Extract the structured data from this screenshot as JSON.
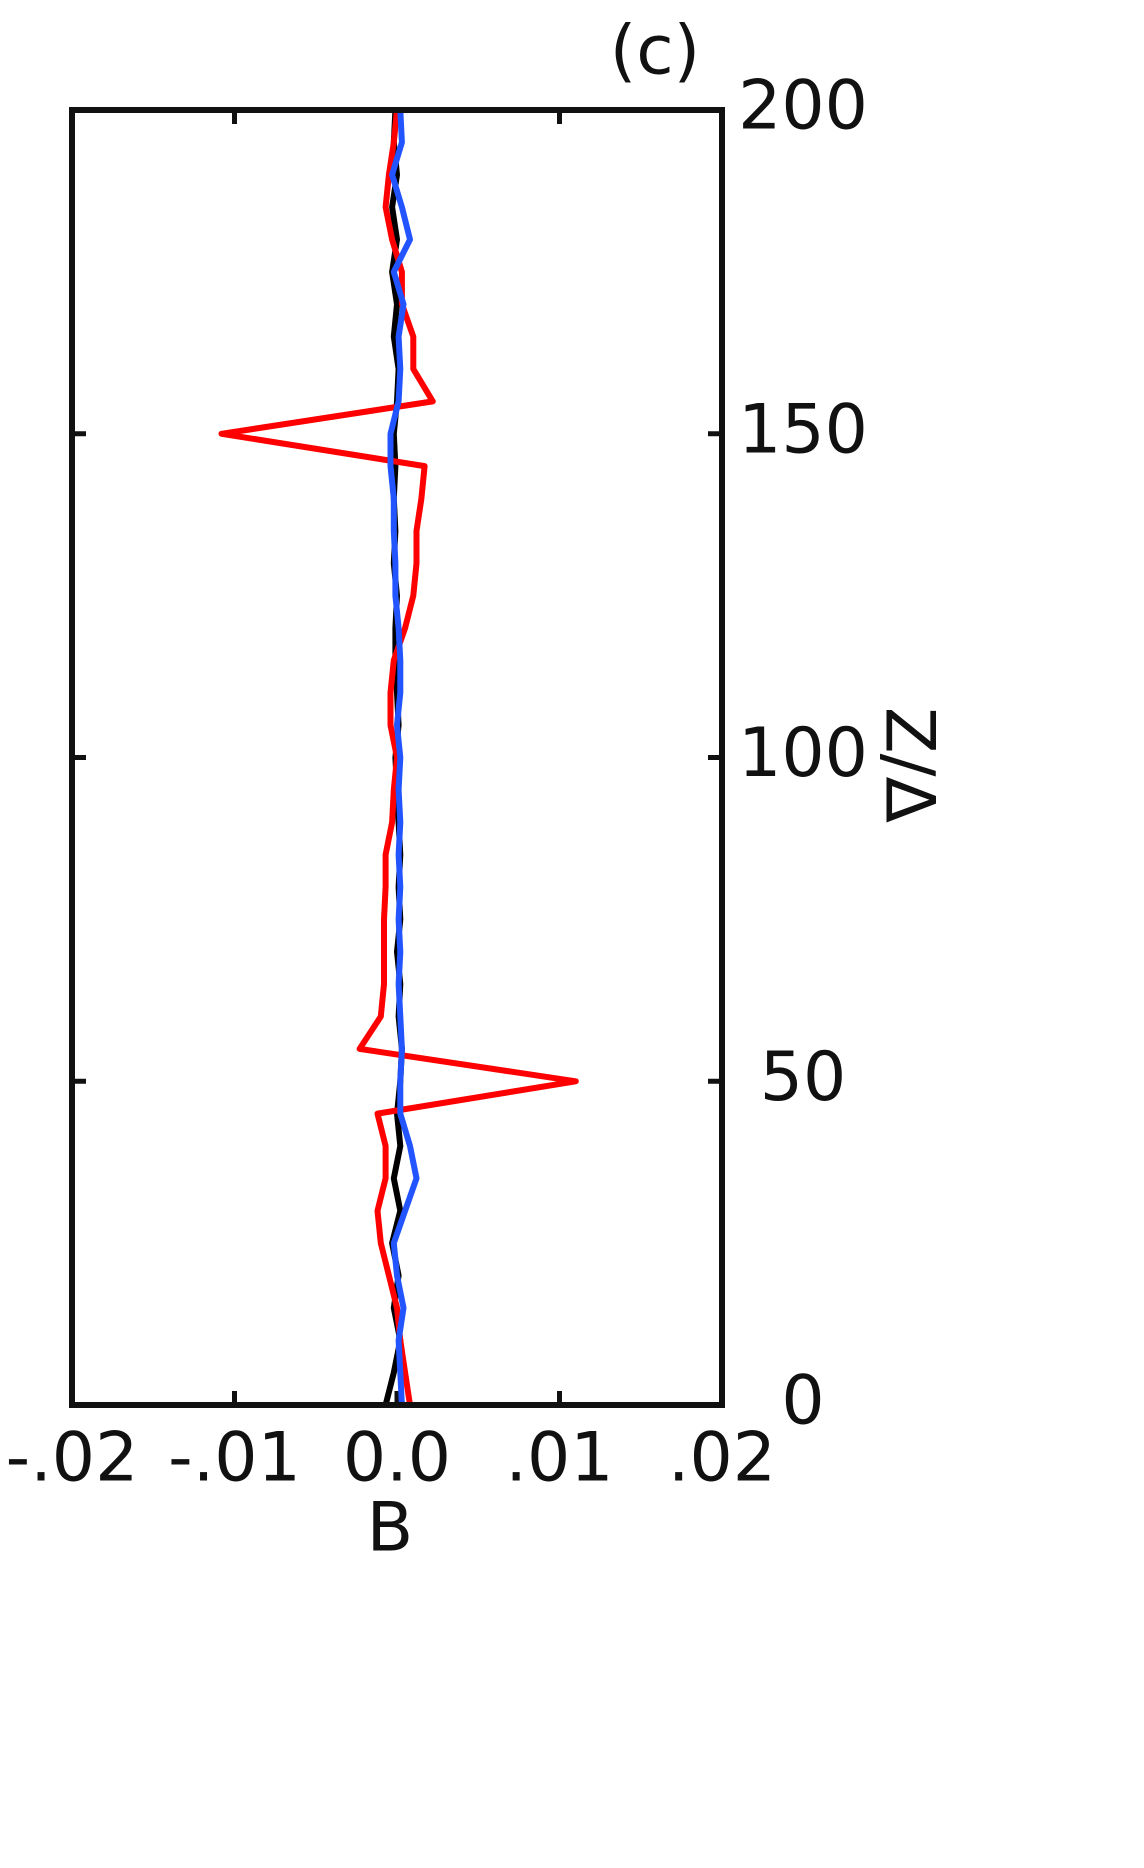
{
  "chart_data": {
    "type": "line",
    "title": "(c)",
    "x_label": "B",
    "y_label": "Z/Δ",
    "y": [
      0,
      5,
      10,
      15,
      20,
      25,
      30,
      35,
      40,
      45,
      50,
      55,
      60,
      65,
      70,
      75,
      80,
      85,
      90,
      95,
      100,
      105,
      110,
      115,
      120,
      125,
      130,
      135,
      140,
      145,
      150,
      155,
      160,
      165,
      170,
      175,
      180,
      185,
      190,
      195,
      200
    ],
    "series": [
      {
        "color": "#000000",
        "values": [
          -0.0007,
          -0.0002,
          0.0002,
          -0.0002,
          0.0001,
          -0.0003,
          0.0002,
          -0.0002,
          0.0002,
          0.0,
          0.0002,
          0.0003,
          0.0001,
          0.0002,
          0.0,
          0.0002,
          0.0001,
          0.0002,
          0.0001,
          0.0,
          -0.0001,
          0.0001,
          0.0,
          -0.0001,
          -0.0001,
          0.0,
          -0.0002,
          -0.0001,
          -0.0002,
          -0.0001,
          -0.0002,
          0.0,
          0.0001,
          -0.0002,
          0.0,
          -0.0003,
          0.0,
          -0.0003,
          0.0,
          -0.0002,
          -0.0001
        ]
      },
      {
        "color": "#ff0000",
        "values": [
          0.0008,
          0.0005,
          0.0002,
          0.0,
          -0.0005,
          -0.001,
          -0.0012,
          -0.0007,
          -0.0007,
          -0.0012,
          0.011,
          -0.0023,
          -0.001,
          -0.0008,
          -0.0008,
          -0.0008,
          -0.0007,
          -0.0007,
          -0.0003,
          -0.0002,
          0.0,
          -0.0004,
          -0.0004,
          -0.0002,
          0.0005,
          0.001,
          0.0012,
          0.0012,
          0.0015,
          0.0017,
          -0.0108,
          0.0022,
          0.001,
          0.001,
          0.0003,
          0.0003,
          -0.0003,
          -0.0007,
          -0.0005,
          -0.0002,
          0.0
        ]
      },
      {
        "color": "#2255ff",
        "values": [
          0.0003,
          0.0002,
          0.0001,
          0.0004,
          0.0,
          -0.0002,
          0.0005,
          0.0012,
          0.0008,
          0.0002,
          0.0002,
          0.0003,
          0.0002,
          0.0001,
          0.0002,
          0.0001,
          0.0002,
          0.0001,
          0.0002,
          0.0001,
          0.0002,
          0.0,
          0.0002,
          0.0002,
          0.0001,
          -0.0001,
          -0.0001,
          -0.0002,
          -0.0002,
          -0.0004,
          -0.0004,
          0.0001,
          0.0002,
          0.0001,
          0.0004,
          -0.0002,
          0.0008,
          0.0003,
          -0.0003,
          0.0003,
          0.0002
        ]
      }
    ],
    "xlim": [
      -0.02,
      0.02
    ],
    "xticks": [
      {
        "value": -0.02,
        "label": "-.02"
      },
      {
        "value": -0.01,
        "label": "-.01"
      },
      {
        "value": 0,
        "label": "0.0"
      },
      {
        "value": 0.01,
        "label": ".01"
      },
      {
        "value": 0.02,
        "label": ".02"
      }
    ],
    "ylim": [
      0,
      200
    ],
    "yticks": [
      0,
      50,
      100,
      150,
      200
    ]
  }
}
